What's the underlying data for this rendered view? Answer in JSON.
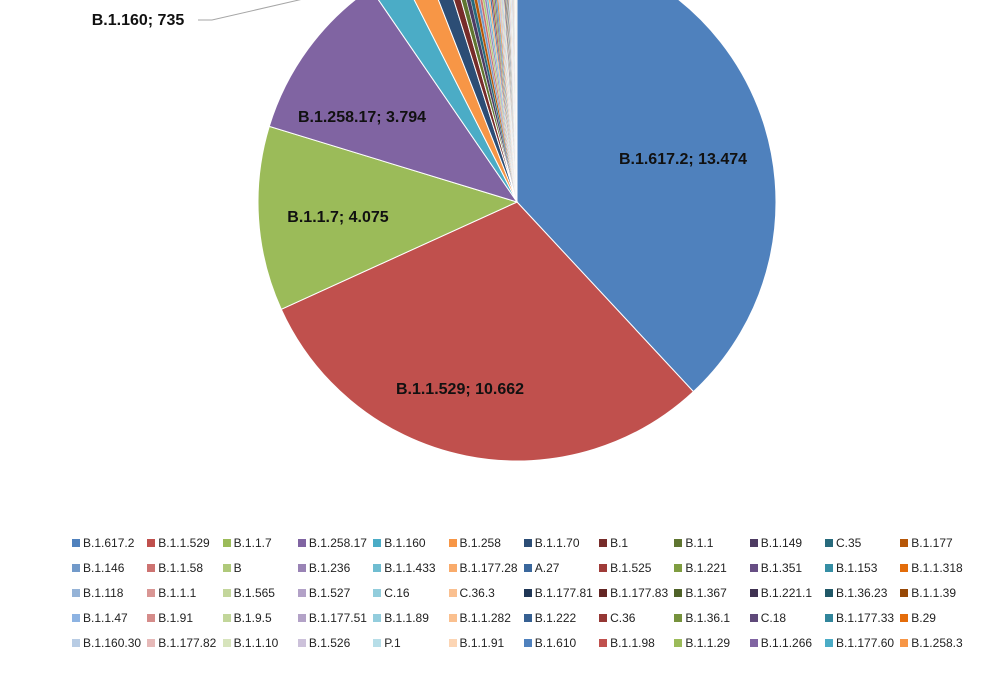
{
  "chart_data": {
    "type": "pie",
    "slices": [
      {
        "name": "B.1.617.2",
        "value": 13474,
        "color": "#4F81BD",
        "label": "B.1.617.2; 13.474"
      },
      {
        "name": "B.1.1.529",
        "value": 10662,
        "color": "#C0504D",
        "label": "B.1.1.529; 10.662"
      },
      {
        "name": "B.1.1.7",
        "value": 4075,
        "color": "#9BBB59",
        "label": "B.1.1.7; 4.075"
      },
      {
        "name": "B.1.258.17",
        "value": 3794,
        "color": "#8064A2",
        "label": "B.1.258.17; 3.794"
      },
      {
        "name": "B.1.160",
        "value": 735,
        "color": "#4BACC6",
        "label": "B.1.160; 735"
      },
      {
        "name": "B.1.258",
        "value": 560,
        "color": "#F79646"
      },
      {
        "name": "B.1.1.70",
        "value": 380,
        "color": "#2C4D75"
      },
      {
        "name": "B.1",
        "value": 190,
        "color": "#772C2A"
      },
      {
        "name": "B.1.1",
        "value": 140,
        "color": "#5F7530"
      },
      {
        "name": "B.1.149",
        "value": 110,
        "color": "#4D3B62"
      },
      {
        "name": "C.35",
        "value": 95,
        "color": "#276A7C"
      },
      {
        "name": "B.1.177",
        "value": 85,
        "color": "#B65708"
      },
      {
        "name": "B.1.146",
        "value": 75,
        "color": "#729ACA"
      },
      {
        "name": "B.1.1.58",
        "value": 65,
        "color": "#CD7371"
      },
      {
        "name": "B",
        "value": 60,
        "color": "#AFC97A"
      },
      {
        "name": "B.1.236",
        "value": 55,
        "color": "#9983B5"
      },
      {
        "name": "B.1.1.433",
        "value": 50,
        "color": "#6FBDD1"
      },
      {
        "name": "B.1.177.28",
        "value": 45,
        "color": "#F9AB6B"
      },
      {
        "name": "A.27",
        "value": 42,
        "color": "#3A679C"
      },
      {
        "name": "B.1.525",
        "value": 40,
        "color": "#9F3B38"
      },
      {
        "name": "B.1.221",
        "value": 38,
        "color": "#7F9D40"
      },
      {
        "name": "B.1.351",
        "value": 36,
        "color": "#674E84"
      },
      {
        "name": "B.1.153",
        "value": 34,
        "color": "#358EA4"
      },
      {
        "name": "B.1.1.318",
        "value": 32,
        "color": "#E36C09"
      },
      {
        "name": "B.1.118",
        "value": 30,
        "color": "#95B3D7"
      },
      {
        "name": "B.1.1.1",
        "value": 29,
        "color": "#D99694"
      },
      {
        "name": "B.1.565",
        "value": 28,
        "color": "#C3D69B"
      },
      {
        "name": "B.1.527",
        "value": 27,
        "color": "#B2A1C7"
      },
      {
        "name": "C.16",
        "value": 26,
        "color": "#92CDDC"
      },
      {
        "name": "C.36.3",
        "value": 25,
        "color": "#FAC090"
      },
      {
        "name": "B.1.177.81",
        "value": 24,
        "color": "#1F3655"
      },
      {
        "name": "B.1.177.83",
        "value": 23,
        "color": "#632523"
      },
      {
        "name": "B.1.367",
        "value": 22,
        "color": "#4F6228"
      },
      {
        "name": "B.1.221.1",
        "value": 21,
        "color": "#3F3151"
      },
      {
        "name": "B.1.36.23",
        "value": 20,
        "color": "#205867"
      },
      {
        "name": "B.1.1.39",
        "value": 19,
        "color": "#974806"
      },
      {
        "name": "B.1.1.47",
        "value": 18,
        "color": "#8DB3E2"
      },
      {
        "name": "B.1.91",
        "value": 17,
        "color": "#D58C8A"
      },
      {
        "name": "B.1.9.5",
        "value": 16,
        "color": "#C2D69A"
      },
      {
        "name": "B.1.177.51",
        "value": 15,
        "color": "#B3A2C7"
      },
      {
        "name": "B.1.1.89",
        "value": 14,
        "color": "#93CDDD"
      },
      {
        "name": "B.1.1.282",
        "value": 13,
        "color": "#FAC08F"
      },
      {
        "name": "B.1.222",
        "value": 12,
        "color": "#366092"
      },
      {
        "name": "C.36",
        "value": 11,
        "color": "#953734"
      },
      {
        "name": "B.1.36.1",
        "value": 10,
        "color": "#76923C"
      },
      {
        "name": "C.18",
        "value": 10,
        "color": "#5F497A"
      },
      {
        "name": "B.1.177.33",
        "value": 9,
        "color": "#31859B"
      },
      {
        "name": "B.29",
        "value": 9,
        "color": "#E46C0A"
      },
      {
        "name": "B.1.160.30",
        "value": 8,
        "color": "#B8CCE4"
      },
      {
        "name": "B.1.177.82",
        "value": 8,
        "color": "#E6B9B8"
      },
      {
        "name": "B.1.1.10",
        "value": 7,
        "color": "#D7E4BC"
      },
      {
        "name": "B.1.526",
        "value": 7,
        "color": "#CCC1DA"
      },
      {
        "name": "P.1",
        "value": 6,
        "color": "#B7DEE8"
      },
      {
        "name": "B.1.1.91",
        "value": 6,
        "color": "#FCD5B4"
      },
      {
        "name": "B.1.610",
        "value": 5,
        "color": "#4F81BD"
      },
      {
        "name": "B.1.1.98",
        "value": 5,
        "color": "#C0504D"
      },
      {
        "name": "B.1.1.29",
        "value": 5,
        "color": "#9BBB59"
      },
      {
        "name": "B.1.1.266",
        "value": 4,
        "color": "#8064A2"
      },
      {
        "name": "B.1.177.60",
        "value": 4,
        "color": "#4BACC6"
      },
      {
        "name": "B.1.258.3",
        "value": 4,
        "color": "#F79646"
      }
    ],
    "legend_position": "bottom",
    "legend_columns": 12
  }
}
